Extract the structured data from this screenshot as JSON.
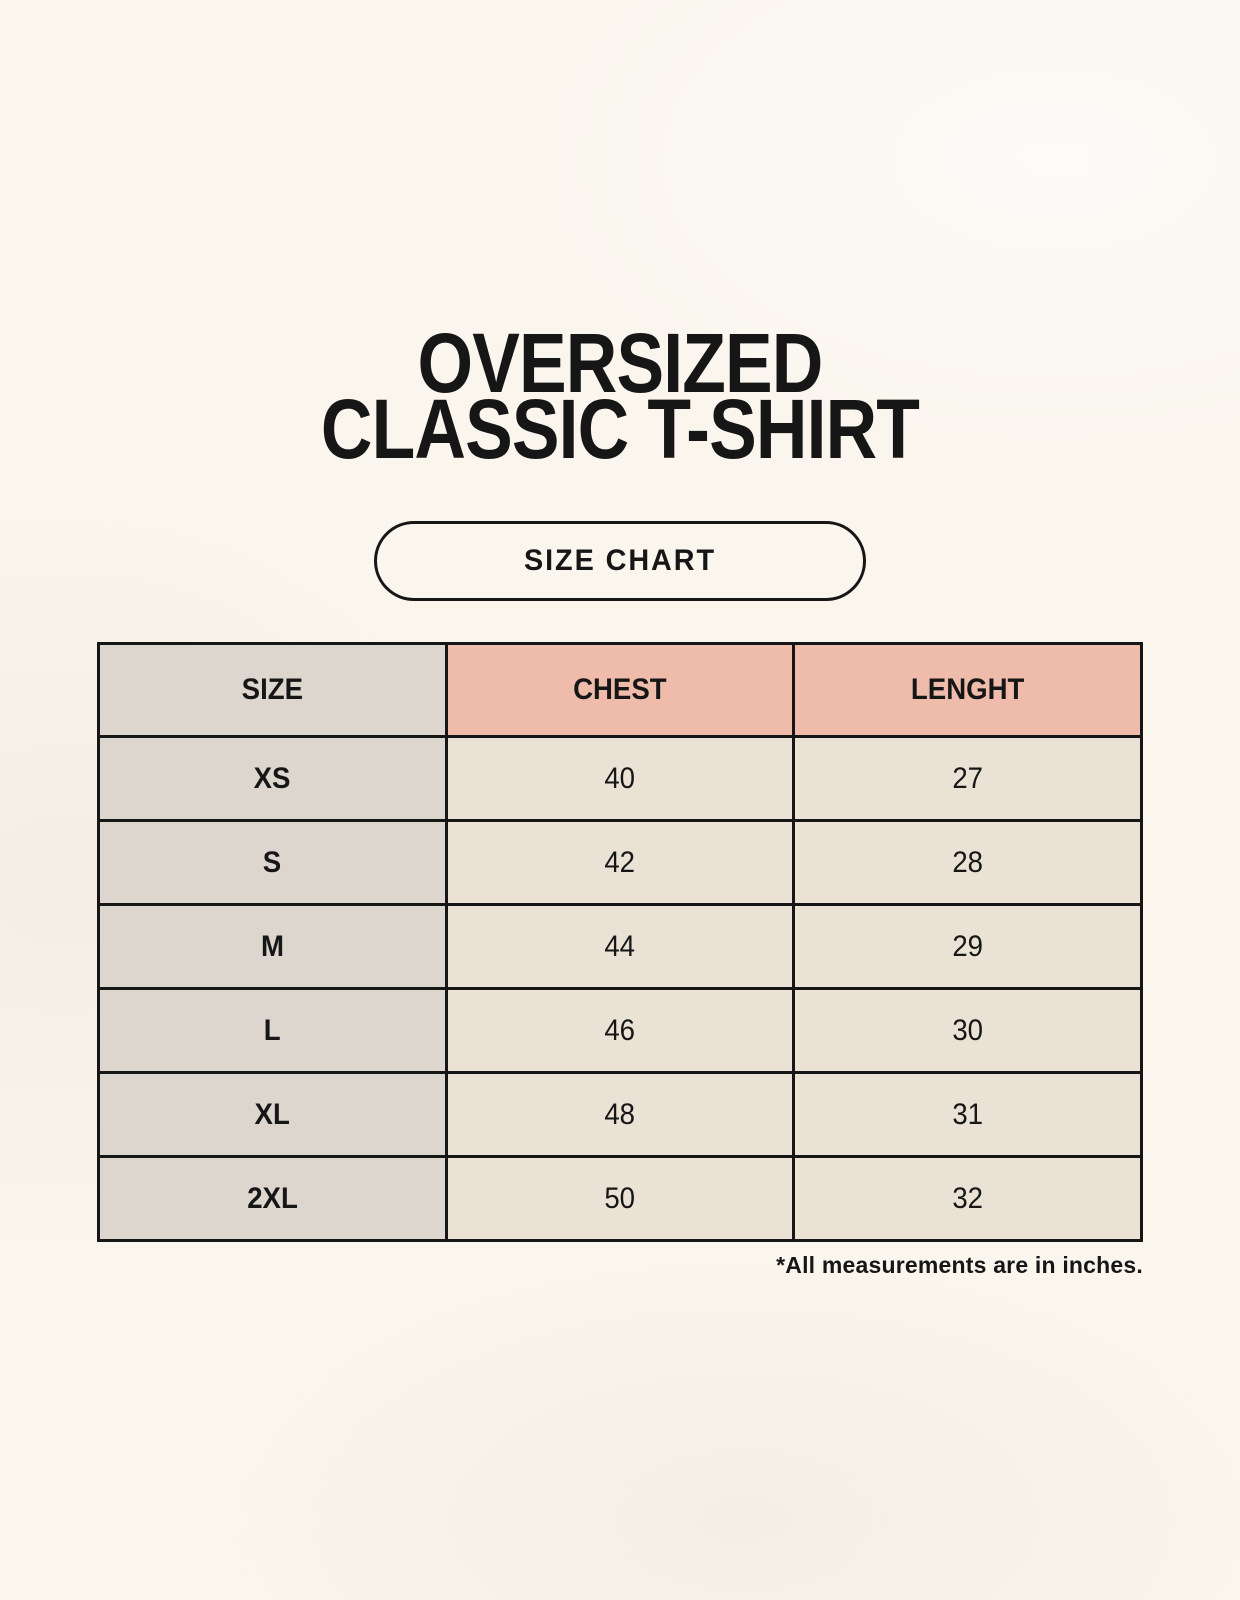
{
  "header": {
    "title_line1": "OVERSIZED",
    "title_line2": "CLASSIC T-SHIRT"
  },
  "badge": {
    "label": "SIZE CHART"
  },
  "chart_data": {
    "type": "table",
    "title": "OVERSIZED CLASSIC T-SHIRT",
    "subtitle": "SIZE CHART",
    "columns": [
      "SIZE",
      "CHEST",
      "LENGHT"
    ],
    "rows": [
      [
        "XS",
        "40",
        "27"
      ],
      [
        "S",
        "42",
        "28"
      ],
      [
        "M",
        "44",
        "29"
      ],
      [
        "L",
        "46",
        "30"
      ],
      [
        "XL",
        "48",
        "31"
      ],
      [
        "2XL",
        "50",
        "32"
      ]
    ],
    "units": "inches"
  },
  "footnote": "*All measurements are in inches.",
  "colors": {
    "background": "#faf6ee",
    "size_column_bg": "#ddd6cf",
    "header_accent_bg": "#efbcab",
    "cell_bg": "#e9e2d5",
    "ink": "#161616"
  }
}
